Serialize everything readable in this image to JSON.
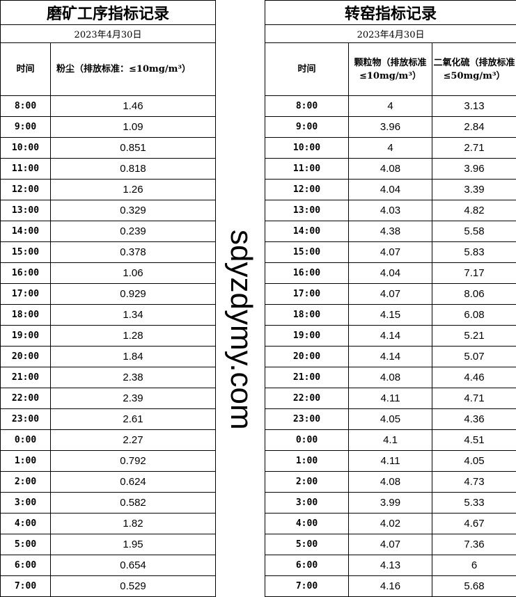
{
  "left": {
    "title": "磨矿工序指标记录",
    "date": "2023年4月30日",
    "col_time": "时间",
    "col_dust": "粉尘（排放标准：≤10mg/m³）",
    "rows": [
      [
        "8:00",
        "1.46"
      ],
      [
        "9:00",
        "1.09"
      ],
      [
        "10:00",
        "0.851"
      ],
      [
        "11:00",
        "0.818"
      ],
      [
        "12:00",
        "1.26"
      ],
      [
        "13:00",
        "0.329"
      ],
      [
        "14:00",
        "0.239"
      ],
      [
        "15:00",
        "0.378"
      ],
      [
        "16:00",
        "1.06"
      ],
      [
        "17:00",
        "0.929"
      ],
      [
        "18:00",
        "1.34"
      ],
      [
        "19:00",
        "1.28"
      ],
      [
        "20:00",
        "1.84"
      ],
      [
        "21:00",
        "2.38"
      ],
      [
        "22:00",
        "2.39"
      ],
      [
        "23:00",
        "2.61"
      ],
      [
        "0:00",
        "2.27"
      ],
      [
        "1:00",
        "0.792"
      ],
      [
        "2:00",
        "0.624"
      ],
      [
        "3:00",
        "0.582"
      ],
      [
        "4:00",
        "1.82"
      ],
      [
        "5:00",
        "1.95"
      ],
      [
        "6:00",
        "0.654"
      ],
      [
        "7:00",
        "0.529"
      ]
    ]
  },
  "right": {
    "title": "转窑指标记录",
    "date": "2023年4月30日",
    "col_time": "时间",
    "col_pm": "颗粒物（排放标准≤10mg/m³）",
    "col_so2": "二氧化硫（排放标准≤50mg/m³）",
    "rows": [
      [
        "8:00",
        "4",
        "3.13"
      ],
      [
        "9:00",
        "3.96",
        "2.84"
      ],
      [
        "10:00",
        "4",
        "2.71"
      ],
      [
        "11:00",
        "4.08",
        "3.96"
      ],
      [
        "12:00",
        "4.04",
        "3.39"
      ],
      [
        "13:00",
        "4.03",
        "4.82"
      ],
      [
        "14:00",
        "4.38",
        "5.58"
      ],
      [
        "15:00",
        "4.07",
        "5.83"
      ],
      [
        "16:00",
        "4.04",
        "7.17"
      ],
      [
        "17:00",
        "4.07",
        "8.06"
      ],
      [
        "18:00",
        "4.15",
        "6.08"
      ],
      [
        "19:00",
        "4.14",
        "5.21"
      ],
      [
        "20:00",
        "4.14",
        "5.07"
      ],
      [
        "21:00",
        "4.08",
        "4.46"
      ],
      [
        "22:00",
        "4.11",
        "4.71"
      ],
      [
        "23:00",
        "4.05",
        "4.36"
      ],
      [
        "0:00",
        "4.1",
        "4.51"
      ],
      [
        "1:00",
        "4.11",
        "4.05"
      ],
      [
        "2:00",
        "4.08",
        "4.73"
      ],
      [
        "3:00",
        "3.99",
        "5.33"
      ],
      [
        "4:00",
        "4.02",
        "4.67"
      ],
      [
        "5:00",
        "4.07",
        "7.36"
      ],
      [
        "6:00",
        "4.13",
        "6"
      ],
      [
        "7:00",
        "4.16",
        "5.68"
      ]
    ]
  },
  "watermark": "sdyzdymy.com"
}
